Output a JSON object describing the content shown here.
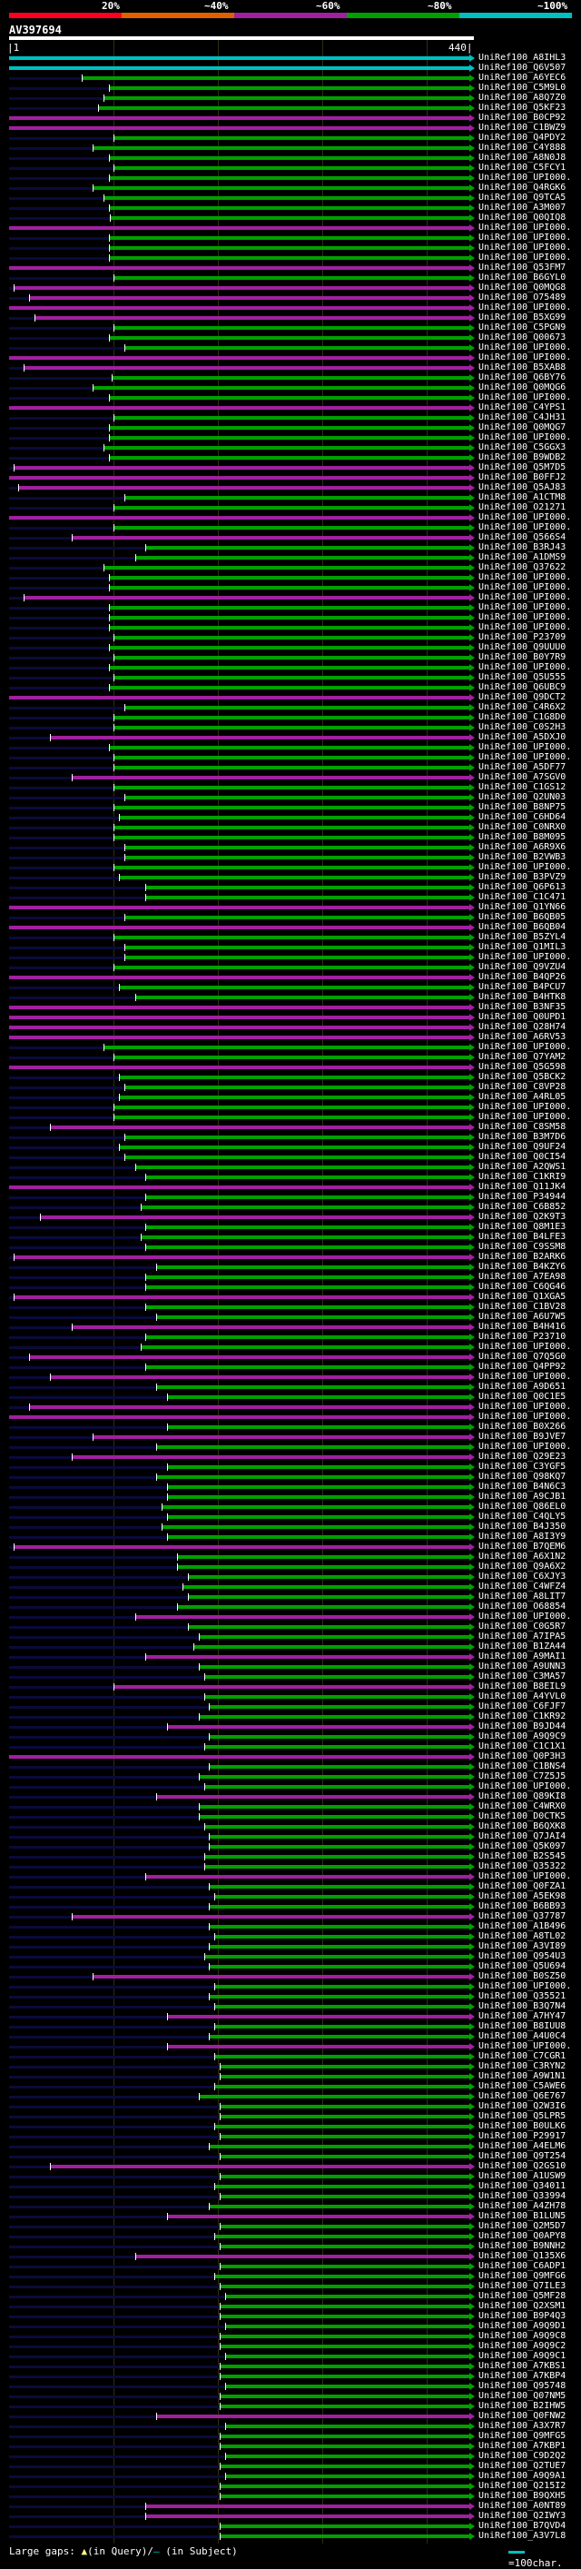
{
  "query": {
    "name": "AV397694",
    "start_label": "|1",
    "end_label": "440|",
    "length": 440
  },
  "score_scale": {
    "labels": [
      "20%",
      "~40%",
      "~60%",
      "~80%",
      "~100%"
    ],
    "colors": [
      "#ff0022",
      "#e06000",
      "#a020a0",
      "#00a000",
      "#00c0c0"
    ]
  },
  "colors": {
    "c": "#00c0c0",
    "g": "#00a000",
    "m": "#a020a0",
    "base": "#0a0a3c"
  },
  "hits": [
    [
      "UniRef100_A8IHL3",
      "c",
      1
    ],
    [
      "UniRef100_Q6V507",
      "c",
      1
    ],
    [
      "UniRef100_A6YEC6",
      "g",
      70
    ],
    [
      "UniRef100_C5M9L0",
      "g",
      95
    ],
    [
      "UniRef100_A8Q7Z0",
      "g",
      90
    ],
    [
      "UniRef100_Q5KF23",
      "g",
      85
    ],
    [
      "UniRef100_B0CP92",
      "m",
      1
    ],
    [
      "UniRef100_C1BWZ9",
      "m",
      1
    ],
    [
      "UniRef100_Q4PDY2",
      "g",
      100
    ],
    [
      "UniRef100_C4Y888",
      "g",
      80
    ],
    [
      "UniRef100_A8N0J8",
      "g",
      95
    ],
    [
      "UniRef100_C5FCY1",
      "g",
      100
    ],
    [
      "UniRef100_UPI000.",
      "g",
      95
    ],
    [
      "UniRef100_Q4RGK6",
      "g",
      80
    ],
    [
      "UniRef100_Q9TCA5",
      "g",
      90
    ],
    [
      "UniRef100_A3M007",
      "g",
      95
    ],
    [
      "UniRef100_Q0QIQ8",
      "g",
      96
    ],
    [
      "UniRef100_UPI000.",
      "m",
      1
    ],
    [
      "UniRef100_UPI000.",
      "g",
      95
    ],
    [
      "UniRef100_UPI000.",
      "g",
      95
    ],
    [
      "UniRef100_UPI000.",
      "g",
      95
    ],
    [
      "UniRef100_Q53FM7",
      "m",
      1
    ],
    [
      "UniRef100_B6GYL0",
      "g",
      100
    ],
    [
      "UniRef100_Q0MQG8",
      "m",
      5
    ],
    [
      "UniRef100_O75489",
      "m",
      20
    ],
    [
      "UniRef100_UPI000.",
      "m",
      1
    ],
    [
      "UniRef100_B5XG99",
      "m",
      25
    ],
    [
      "UniRef100_C5PGN9",
      "g",
      100
    ],
    [
      "UniRef100_Q00673",
      "g",
      95
    ],
    [
      "UniRef100_UPI000.",
      "g",
      110
    ],
    [
      "UniRef100_UPI000.",
      "m",
      1
    ],
    [
      "UniRef100_B5XAB8",
      "m",
      15
    ],
    [
      "UniRef100_Q6BY76",
      "g",
      98
    ],
    [
      "UniRef100_Q0MQG6",
      "g",
      80
    ],
    [
      "UniRef100_UPI000.",
      "g",
      95
    ],
    [
      "UniRef100_C4YPS1",
      "m",
      1
    ],
    [
      "UniRef100_C4JH31",
      "g",
      100
    ],
    [
      "UniRef100_Q0MQG7",
      "g",
      95
    ],
    [
      "UniRef100_UPI000.",
      "g",
      95
    ],
    [
      "UniRef100_C5GGX3",
      "g",
      90
    ],
    [
      "UniRef100_B9WDB2",
      "g",
      95
    ],
    [
      "UniRef100_Q5M7D5",
      "m",
      5
    ],
    [
      "UniRef100_B0FFJ2",
      "m",
      1
    ],
    [
      "UniRef100_Q5AJ83",
      "m",
      10
    ],
    [
      "UniRef100_A1CTM8",
      "g",
      110
    ],
    [
      "UniRef100_O21271",
      "g",
      100
    ],
    [
      "UniRef100_UPI000.",
      "m",
      1
    ],
    [
      "UniRef100_UPI000.",
      "g",
      100
    ],
    [
      "UniRef100_Q566S4",
      "m",
      60
    ],
    [
      "UniRef100_B3RJ43",
      "g",
      130
    ],
    [
      "UniRef100_A1DMS9",
      "g",
      120
    ],
    [
      "UniRef100_Q37622",
      "g",
      90
    ],
    [
      "UniRef100_UPI000.",
      "g",
      95
    ],
    [
      "UniRef100_UPI000.",
      "g",
      95
    ],
    [
      "UniRef100_UPI000.",
      "m",
      15
    ],
    [
      "UniRef100_UPI000.",
      "g",
      95
    ],
    [
      "UniRef100_UPI000.",
      "g",
      95
    ],
    [
      "UniRef100_UPI000.",
      "g",
      95
    ],
    [
      "UniRef100_P23709",
      "g",
      100
    ],
    [
      "UniRef100_Q9UUU0",
      "g",
      95
    ],
    [
      "UniRef100_B0Y7R9",
      "g",
      100
    ],
    [
      "UniRef100_UPI000.",
      "g",
      95
    ],
    [
      "UniRef100_Q5U555",
      "g",
      100
    ],
    [
      "UniRef100_Q6UBC9",
      "g",
      95
    ],
    [
      "UniRef100_Q9DCT2",
      "m",
      1
    ],
    [
      "UniRef100_C4R6X2",
      "g",
      110
    ],
    [
      "UniRef100_C1G8D0",
      "g",
      100
    ],
    [
      "UniRef100_C0S2H3",
      "g",
      100
    ],
    [
      "UniRef100_A5DXJ0",
      "m",
      40
    ],
    [
      "UniRef100_UPI000.",
      "g",
      95
    ],
    [
      "UniRef100_UPI000.",
      "g",
      100
    ],
    [
      "UniRef100_A5DF77",
      "g",
      100
    ],
    [
      "UniRef100_A7SGV0",
      "m",
      60
    ],
    [
      "UniRef100_C1GS12",
      "g",
      100
    ],
    [
      "UniRef100_Q2UN03",
      "g",
      110
    ],
    [
      "UniRef100_B8NP75",
      "g",
      100
    ],
    [
      "UniRef100_C6HD64",
      "g",
      105
    ],
    [
      "UniRef100_C0NRX0",
      "g",
      100
    ],
    [
      "UniRef100_B8M095",
      "g",
      100
    ],
    [
      "UniRef100_A6R9X6",
      "g",
      110
    ],
    [
      "UniRef100_B2VWB3",
      "g",
      110
    ],
    [
      "UniRef100_UPI000.",
      "g",
      100
    ],
    [
      "UniRef100_B3PVZ9",
      "g",
      105
    ],
    [
      "UniRef100_Q6P613",
      "g",
      130
    ],
    [
      "UniRef100_C1C471",
      "g",
      130
    ],
    [
      "UniRef100_Q1YN66",
      "m",
      1
    ],
    [
      "UniRef100_B6QB05",
      "g",
      110
    ],
    [
      "UniRef100_B6QB04",
      "m",
      1
    ],
    [
      "UniRef100_B5ZYL4",
      "g",
      100
    ],
    [
      "UniRef100_Q1MIL3",
      "g",
      110
    ],
    [
      "UniRef100_UPI000.",
      "g",
      110
    ],
    [
      "UniRef100_Q9VZU4",
      "g",
      100
    ],
    [
      "UniRef100_B4QP26",
      "m",
      1
    ],
    [
      "UniRef100_B4PCU7",
      "g",
      105
    ],
    [
      "UniRef100_B4HTK8",
      "g",
      120
    ],
    [
      "UniRef100_B3NF35",
      "m",
      1
    ],
    [
      "UniRef100_Q0UPD1",
      "m",
      1
    ],
    [
      "UniRef100_Q28H74",
      "m",
      1
    ],
    [
      "UniRef100_A6RV53",
      "m",
      1
    ],
    [
      "UniRef100_UPI000.",
      "g",
      90
    ],
    [
      "UniRef100_Q7YAM2",
      "g",
      100
    ],
    [
      "UniRef100_Q5G598",
      "m",
      1
    ],
    [
      "UniRef100_Q5BCK2",
      "g",
      105
    ],
    [
      "UniRef100_C8VP28",
      "g",
      110
    ],
    [
      "UniRef100_A4RL05",
      "g",
      105
    ],
    [
      "UniRef100_UPI000.",
      "g",
      100
    ],
    [
      "UniRef100_UPI000.",
      "g",
      100
    ],
    [
      "UniRef100_C8SM58",
      "m",
      40
    ],
    [
      "UniRef100_B3M7D6",
      "g",
      110
    ],
    [
      "UniRef100_Q9UF24",
      "g",
      105
    ],
    [
      "UniRef100_Q0CI54",
      "g",
      110
    ],
    [
      "UniRef100_A2QWS1",
      "g",
      120
    ],
    [
      "UniRef100_C1KRI9",
      "g",
      130
    ],
    [
      "UniRef100_Q11JK4",
      "m",
      1
    ],
    [
      "UniRef100_P34944",
      "g",
      130
    ],
    [
      "UniRef100_C6B852",
      "g",
      125
    ],
    [
      "UniRef100_Q2K9T3",
      "m",
      30
    ],
    [
      "UniRef100_Q8M1E3",
      "g",
      130
    ],
    [
      "UniRef100_B4LFE3",
      "g",
      125
    ],
    [
      "UniRef100_C9SSM8",
      "g",
      130
    ],
    [
      "UniRef100_B2ARK6",
      "m",
      5
    ],
    [
      "UniRef100_B4KZY6",
      "g",
      140
    ],
    [
      "UniRef100_A7EA98",
      "g",
      130
    ],
    [
      "UniRef100_C6QG46",
      "g",
      130
    ],
    [
      "UniRef100_Q1XGA5",
      "m",
      5
    ],
    [
      "UniRef100_C1BV28",
      "g",
      130
    ],
    [
      "UniRef100_A6U7W5",
      "g",
      140
    ],
    [
      "UniRef100_B4H416",
      "m",
      60
    ],
    [
      "UniRef100_P23710",
      "g",
      130
    ],
    [
      "UniRef100_UPI000.",
      "g",
      125
    ],
    [
      "UniRef100_Q7Q5G0",
      "m",
      20
    ],
    [
      "UniRef100_Q4PP92",
      "g",
      130
    ],
    [
      "UniRef100_UPI000.",
      "m",
      40
    ],
    [
      "UniRef100_A9D651",
      "g",
      140
    ],
    [
      "UniRef100_Q0C1E5",
      "g",
      150
    ],
    [
      "UniRef100_UPI000.",
      "m",
      20
    ],
    [
      "UniRef100_UPI000.",
      "m",
      1
    ],
    [
      "UniRef100_B0X266",
      "g",
      150
    ],
    [
      "UniRef100_B9JVE7",
      "m",
      80
    ],
    [
      "UniRef100_UPI000.",
      "g",
      140
    ],
    [
      "UniRef100_Q29E23",
      "m",
      60
    ],
    [
      "UniRef100_C3YGF5",
      "g",
      150
    ],
    [
      "UniRef100_Q98KQ7",
      "g",
      140
    ],
    [
      "UniRef100_B4N6C3",
      "g",
      150
    ],
    [
      "UniRef100_A9CJB1",
      "g",
      150
    ],
    [
      "UniRef100_Q86EL0",
      "g",
      145
    ],
    [
      "UniRef100_C4QLY5",
      "g",
      150
    ],
    [
      "UniRef100_B4J350",
      "g",
      145
    ],
    [
      "UniRef100_A8I3Y9",
      "g",
      150
    ],
    [
      "UniRef100_B7QEM6",
      "m",
      5
    ],
    [
      "UniRef100_A6X1N2",
      "g",
      160
    ],
    [
      "UniRef100_Q9A6X2",
      "g",
      160
    ],
    [
      "UniRef100_C6XJY3",
      "g",
      170
    ],
    [
      "UniRef100_C4WFZ4",
      "g",
      165
    ],
    [
      "UniRef100_A8LIT7",
      "g",
      170
    ],
    [
      "UniRef100_O68854",
      "g",
      160
    ],
    [
      "UniRef100_UPI000.",
      "m",
      120
    ],
    [
      "UniRef100_C0G5R7",
      "g",
      170
    ],
    [
      "UniRef100_A7IPA5",
      "g",
      180
    ],
    [
      "UniRef100_B1ZA44",
      "g",
      175
    ],
    [
      "UniRef100_A9MAI1",
      "m",
      130
    ],
    [
      "UniRef100_A9UNN3",
      "g",
      180
    ],
    [
      "UniRef100_C3MA57",
      "g",
      185
    ],
    [
      "UniRef100_B8EIL9",
      "m",
      100
    ],
    [
      "UniRef100_A4YVL0",
      "g",
      185
    ],
    [
      "UniRef100_C6FJF7",
      "g",
      190
    ],
    [
      "UniRef100_C1KR92",
      "g",
      180
    ],
    [
      "UniRef100_B9JD44",
      "m",
      150
    ],
    [
      "UniRef100_A9Q9C9",
      "g",
      190
    ],
    [
      "UniRef100_C1C1X1",
      "g",
      185
    ],
    [
      "UniRef100_Q0P3H3",
      "m",
      1
    ],
    [
      "UniRef100_C1BNS4",
      "g",
      190
    ],
    [
      "UniRef100_C7Z5J5",
      "g",
      180
    ],
    [
      "UniRef100_UPI000.",
      "g",
      185
    ],
    [
      "UniRef100_Q89KI8",
      "m",
      140
    ],
    [
      "UniRef100_C4WRX0",
      "g",
      180
    ],
    [
      "UniRef100_D0CTK5",
      "g",
      180
    ],
    [
      "UniRef100_B6QXK8",
      "g",
      185
    ],
    [
      "UniRef100_Q7JAI4",
      "g",
      190
    ],
    [
      "UniRef100_Q5K097",
      "g",
      190
    ],
    [
      "UniRef100_B2S545",
      "g",
      185
    ],
    [
      "UniRef100_Q35322",
      "g",
      185
    ],
    [
      "UniRef100_UPI000.",
      "m",
      130
    ],
    [
      "UniRef100_Q0FZA1",
      "g",
      190
    ],
    [
      "UniRef100_A5EK98",
      "g",
      195
    ],
    [
      "UniRef100_B6BB93",
      "g",
      190
    ],
    [
      "UniRef100_Q37787",
      "m",
      60
    ],
    [
      "UniRef100_A1B496",
      "g",
      190
    ],
    [
      "UniRef100_A8TL02",
      "g",
      195
    ],
    [
      "UniRef100_A3VI89",
      "g",
      190
    ],
    [
      "UniRef100_Q954U3",
      "g",
      185
    ],
    [
      "UniRef100_Q5U694",
      "g",
      190
    ],
    [
      "UniRef100_B0SZ50",
      "m",
      80
    ],
    [
      "UniRef100_UPI000.",
      "g",
      195
    ],
    [
      "UniRef100_Q35521",
      "g",
      190
    ],
    [
      "UniRef100_B3Q7N4",
      "g",
      195
    ],
    [
      "UniRef100_A7HY47",
      "m",
      150
    ],
    [
      "UniRef100_B8IUU8",
      "g",
      195
    ],
    [
      "UniRef100_A4U0C4",
      "g",
      190
    ],
    [
      "UniRef100_UPI000.",
      "m",
      150
    ],
    [
      "UniRef100_C7CGR1",
      "g",
      195
    ],
    [
      "UniRef100_C3RYN2",
      "g",
      200
    ],
    [
      "UniRef100_A9W1N1",
      "g",
      200
    ],
    [
      "UniRef100_C5AWE6",
      "g",
      195
    ],
    [
      "UniRef100_Q6E767",
      "g",
      180
    ],
    [
      "UniRef100_Q2W3I6",
      "g",
      200
    ],
    [
      "UniRef100_Q5LPR5",
      "g",
      200
    ],
    [
      "UniRef100_B0ULK6",
      "g",
      195
    ],
    [
      "UniRef100_P29917",
      "g",
      200
    ],
    [
      "UniRef100_A4ELM6",
      "g",
      190
    ],
    [
      "UniRef100_Q9T254",
      "g",
      200
    ],
    [
      "UniRef100_Q2GS10",
      "m",
      40
    ],
    [
      "UniRef100_A1USW9",
      "g",
      200
    ],
    [
      "UniRef100_Q34011",
      "g",
      195
    ],
    [
      "UniRef100_Q33994",
      "g",
      200
    ],
    [
      "UniRef100_A4ZH78",
      "g",
      190
    ],
    [
      "UniRef100_B1LUN5",
      "m",
      150
    ],
    [
      "UniRef100_Q2M5D7",
      "g",
      200
    ],
    [
      "UniRef100_Q0APY8",
      "g",
      195
    ],
    [
      "UniRef100_B9NNH2",
      "g",
      200
    ],
    [
      "UniRef100_Q135X6",
      "m",
      120
    ],
    [
      "UniRef100_C6ADP1",
      "g",
      200
    ],
    [
      "UniRef100_Q9MFG6",
      "g",
      195
    ],
    [
      "UniRef100_Q7ILE3",
      "g",
      200
    ],
    [
      "UniRef100_Q5MF28",
      "g",
      205
    ],
    [
      "UniRef100_Q2XSM1",
      "g",
      200
    ],
    [
      "UniRef100_B9P4Q3",
      "g",
      200
    ],
    [
      "UniRef100_A9Q9D1",
      "g",
      205
    ],
    [
      "UniRef100_A9Q9C8",
      "g",
      200
    ],
    [
      "UniRef100_A9Q9C2",
      "g",
      200
    ],
    [
      "UniRef100_A9Q9C1",
      "g",
      205
    ],
    [
      "UniRef100_A7KBS1",
      "g",
      200
    ],
    [
      "UniRef100_A7KBP4",
      "g",
      200
    ],
    [
      "UniRef100_Q95748",
      "g",
      205
    ],
    [
      "UniRef100_Q07NM5",
      "g",
      200
    ],
    [
      "UniRef100_B2IHW5",
      "g",
      200
    ],
    [
      "UniRef100_Q0FNW2",
      "m",
      140
    ],
    [
      "UniRef100_A3X7R7",
      "g",
      205
    ],
    [
      "UniRef100_Q9MFG5",
      "g",
      200
    ],
    [
      "UniRef100_A7KBP1",
      "g",
      200
    ],
    [
      "UniRef100_C9D2Q2",
      "g",
      205
    ],
    [
      "UniRef100_Q2TUE7",
      "g",
      200
    ],
    [
      "UniRef100_A9Q9A1",
      "g",
      205
    ],
    [
      "UniRef100_Q215I2",
      "g",
      200
    ],
    [
      "UniRef100_B9QXH5",
      "g",
      200
    ],
    [
      "UniRef100_A0NT89",
      "m",
      130
    ],
    [
      "UniRef100_Q2IWY3",
      "m",
      130
    ],
    [
      "UniRef100_B7QVD4",
      "g",
      200
    ],
    [
      "UniRef100_A3V7L8",
      "g",
      200
    ]
  ],
  "legend": {
    "label": "Large gaps:",
    "query_gap": "(in Query)/",
    "subject_gap": "(in Subject)",
    "query_gap_icon": "yellow-triangle",
    "subject_gap_icon": "cyan-dash",
    "scale_label": "=100char."
  }
}
